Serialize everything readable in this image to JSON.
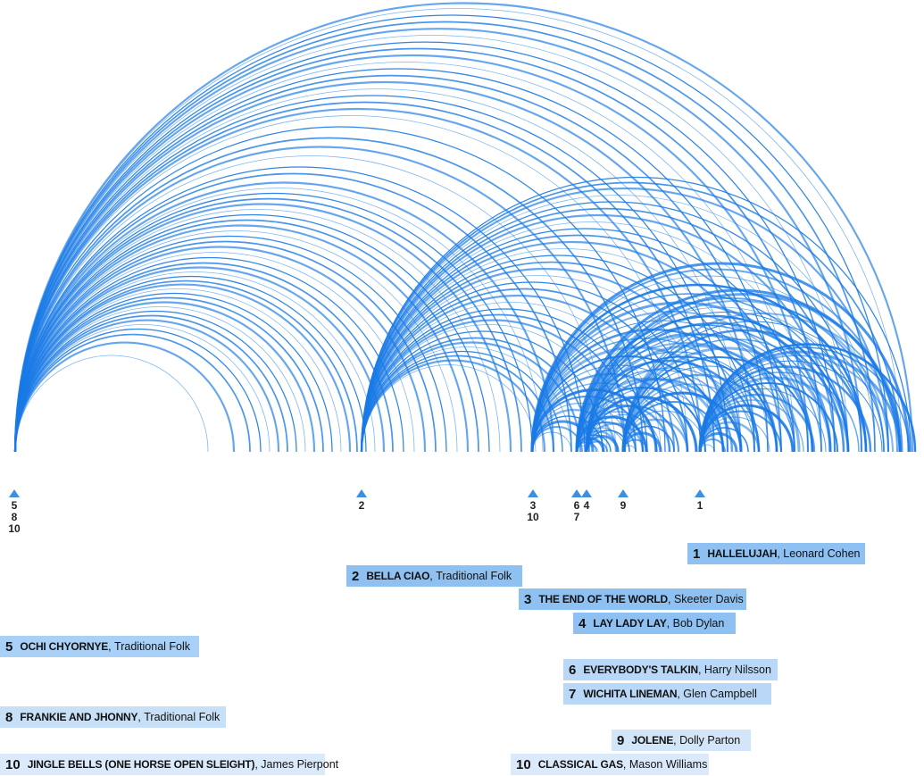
{
  "colors": {
    "arc": "#1a7ae6",
    "legend_strong": "#8ec0f2",
    "legend_light": "#d3e6f9",
    "marker": "#3f8ee0"
  },
  "markers": [
    {
      "labels": [
        "5",
        "8",
        "10"
      ]
    },
    {
      "labels": [
        "2"
      ]
    },
    {
      "labels": [
        "3",
        "10"
      ]
    },
    {
      "labels": [
        "6",
        "7"
      ]
    },
    {
      "labels": [
        "4"
      ]
    },
    {
      "labels": [
        "9"
      ]
    },
    {
      "labels": [
        "1"
      ]
    }
  ],
  "songs": [
    {
      "rank": "1",
      "title": "HALLELUJAH",
      "artist": "Leonard Cohen"
    },
    {
      "rank": "2",
      "title": "BELLA CIAO",
      "artist": "Traditional Folk"
    },
    {
      "rank": "3",
      "title": "THE END OF THE WORLD",
      "artist": "Skeeter Davis"
    },
    {
      "rank": "4",
      "title": "LAY LADY LAY",
      "artist": "Bob Dylan"
    },
    {
      "rank": "5",
      "title": "OCHI CHYORNYE",
      "artist": "Traditional Folk"
    },
    {
      "rank": "6",
      "title": "EVERYBODY'S TALKIN",
      "artist": "Harry Nilsson"
    },
    {
      "rank": "7",
      "title": "WICHITA LINEMAN",
      "artist": "Glen Campbell"
    },
    {
      "rank": "8",
      "title": "FRANKIE AND JHONNY",
      "artist": "Traditional Folk"
    },
    {
      "rank": "9",
      "title": "JOLENE",
      "artist": "Dolly Parton"
    },
    {
      "rank": "10",
      "title": "JINGLE BELLS (ONE HORSE OPEN SLEIGHT)",
      "artist": "James Pierpont"
    },
    {
      "rank": "10",
      "title": "CLASSICAL GAS",
      "artist": "Mason Williams"
    }
  ]
}
